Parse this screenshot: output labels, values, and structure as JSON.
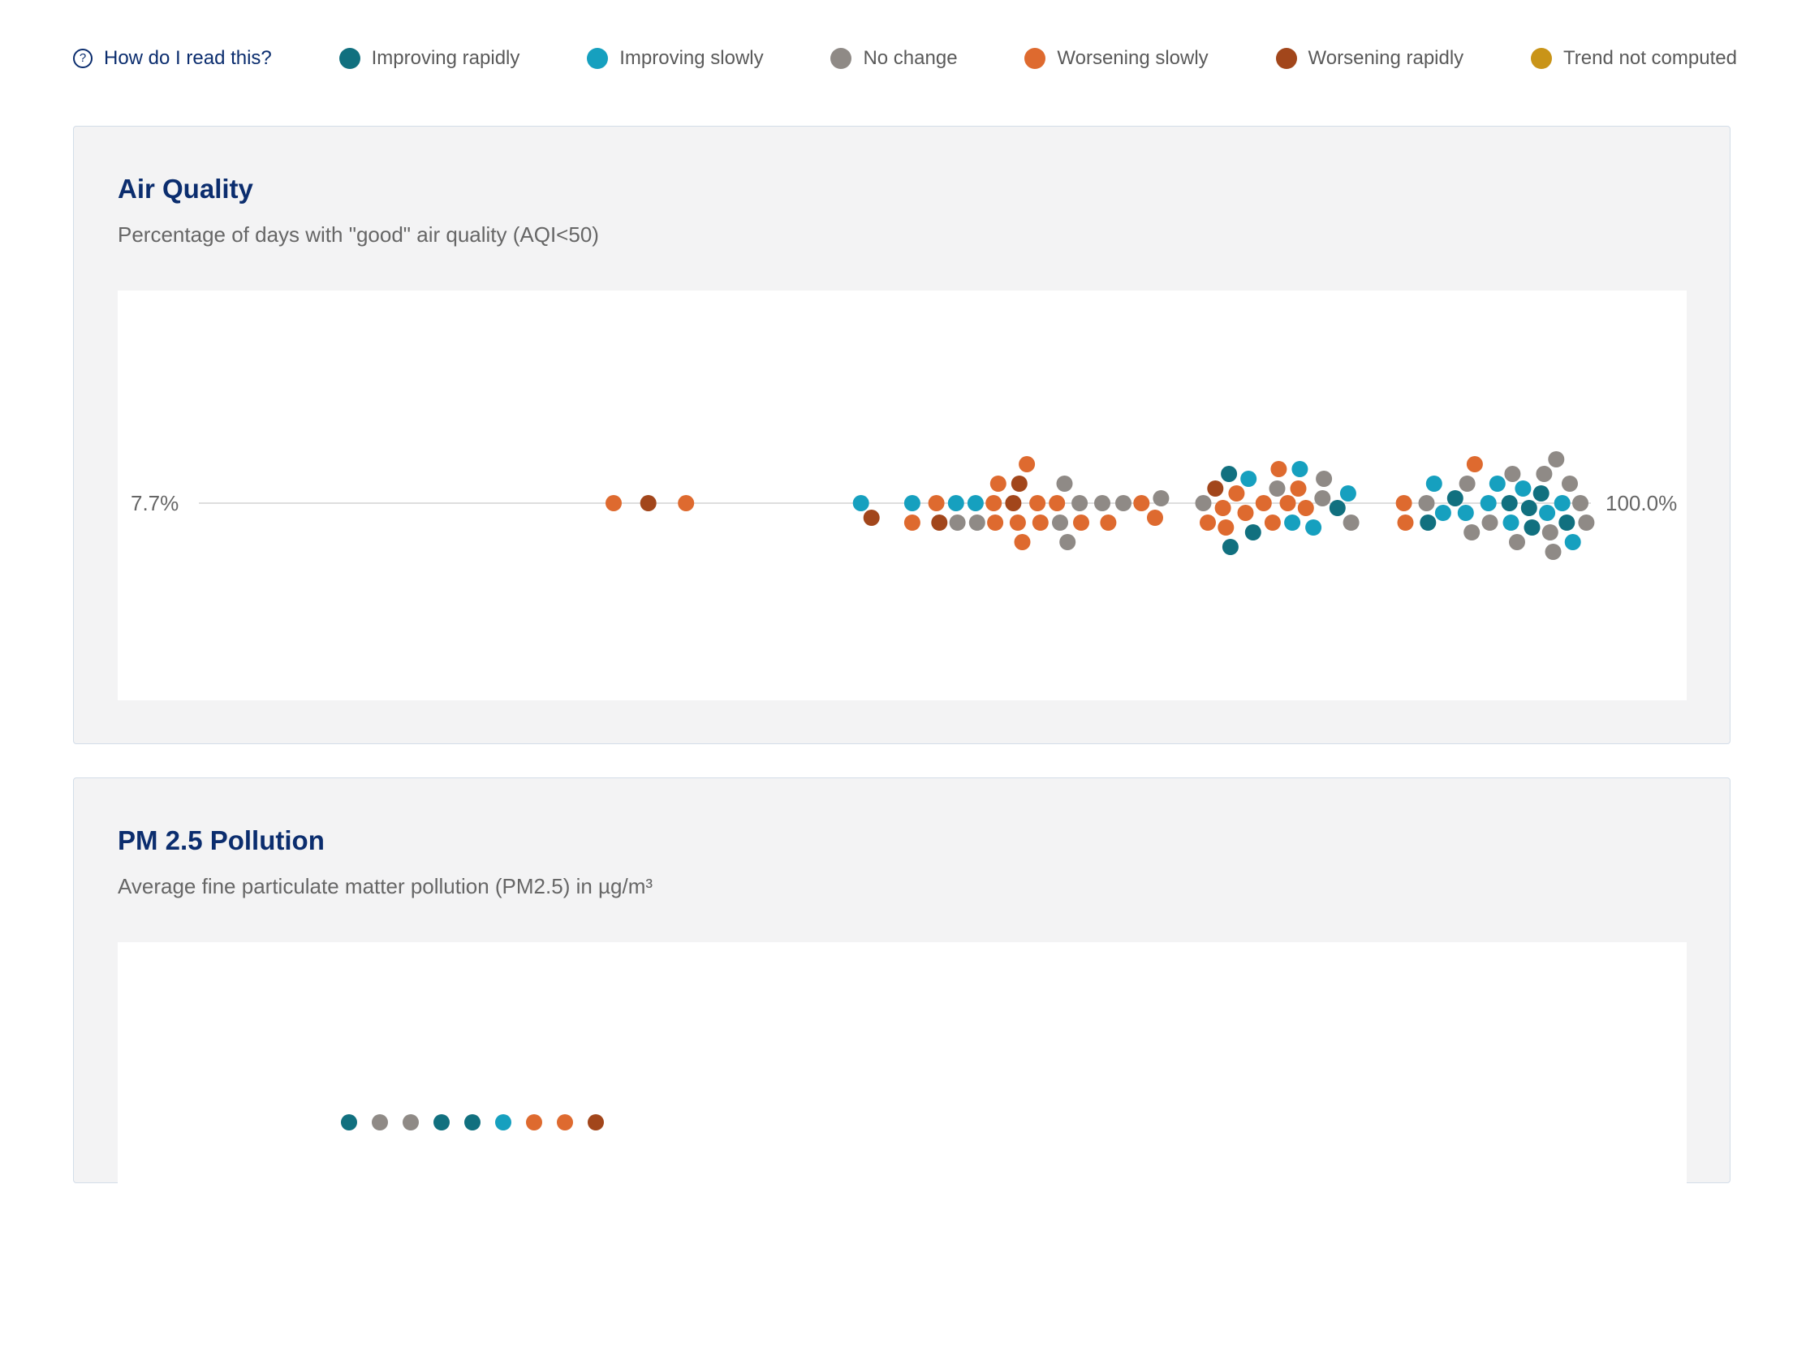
{
  "legend": {
    "help_label": "How do I read this?",
    "help_icon": "question-circle-icon",
    "items": [
      {
        "label": "Improving rapidly",
        "color": "#11707f"
      },
      {
        "label": "Improving slowly",
        "color": "#16a0bf"
      },
      {
        "label": "No change",
        "color": "#8f8a86"
      },
      {
        "label": "Worsening slowly",
        "color": "#de6a2f"
      },
      {
        "label": "Worsening rapidly",
        "color": "#a2461b"
      },
      {
        "label": "Trend not computed",
        "color": "#c99418"
      }
    ]
  },
  "panels": [
    {
      "title": "Air Quality",
      "subtitle": "Percentage of days with \"good\" air quality (AQI<50)"
    },
    {
      "title": "PM 2.5 Pollution",
      "subtitle": "Average fine particulate matter pollution (PM2.5) in µg/m³"
    }
  ],
  "chart_data": [
    {
      "type": "scatter",
      "title": "Air Quality",
      "subtitle": "Percentage of days with \"good\" air quality (AQI<50)",
      "layout": "beeswarm",
      "xlim": [
        7.7,
        100.0
      ],
      "min_label": "7.7%",
      "max_label": "100.0%",
      "points": [
        {
          "x": 35.2,
          "trend": "Worsening slowly"
        },
        {
          "x": 37.5,
          "trend": "Worsening rapidly"
        },
        {
          "x": 40.0,
          "trend": "Worsening slowly"
        },
        {
          "x": 51.6,
          "trend": "Improving slowly"
        },
        {
          "x": 52.3,
          "trend": "Worsening rapidly"
        },
        {
          "x": 55.0,
          "trend": "Improving slowly"
        },
        {
          "x": 55.0,
          "trend": "Worsening slowly"
        },
        {
          "x": 56.6,
          "trend": "Worsening slowly"
        },
        {
          "x": 56.8,
          "trend": "Worsening rapidly"
        },
        {
          "x": 57.9,
          "trend": "Improving slowly"
        },
        {
          "x": 58.0,
          "trend": "No change"
        },
        {
          "x": 59.2,
          "trend": "Improving slowly"
        },
        {
          "x": 59.3,
          "trend": "No change"
        },
        {
          "x": 60.4,
          "trend": "Worsening slowly"
        },
        {
          "x": 60.5,
          "trend": "Worsening slowly"
        },
        {
          "x": 60.7,
          "trend": "Worsening slowly"
        },
        {
          "x": 61.7,
          "trend": "Worsening rapidly"
        },
        {
          "x": 62.0,
          "trend": "Worsening slowly"
        },
        {
          "x": 62.1,
          "trend": "Worsening rapidly"
        },
        {
          "x": 62.3,
          "trend": "Worsening slowly"
        },
        {
          "x": 62.6,
          "trend": "Worsening slowly"
        },
        {
          "x": 63.3,
          "trend": "Worsening slowly"
        },
        {
          "x": 63.5,
          "trend": "Worsening slowly"
        },
        {
          "x": 64.6,
          "trend": "Worsening slowly"
        },
        {
          "x": 64.8,
          "trend": "No change"
        },
        {
          "x": 65.1,
          "trend": "No change"
        },
        {
          "x": 65.3,
          "trend": "No change"
        },
        {
          "x": 66.1,
          "trend": "No change"
        },
        {
          "x": 66.2,
          "trend": "Worsening slowly"
        },
        {
          "x": 67.6,
          "trend": "No change"
        },
        {
          "x": 68.0,
          "trend": "Worsening slowly"
        },
        {
          "x": 69.0,
          "trend": "No change"
        },
        {
          "x": 70.2,
          "trend": "Worsening slowly"
        },
        {
          "x": 71.1,
          "trend": "Worsening slowly"
        },
        {
          "x": 71.5,
          "trend": "No change"
        },
        {
          "x": 74.3,
          "trend": "No change"
        },
        {
          "x": 74.6,
          "trend": "Worsening slowly"
        },
        {
          "x": 75.1,
          "trend": "Worsening rapidly"
        },
        {
          "x": 75.6,
          "trend": "Worsening slowly"
        },
        {
          "x": 75.8,
          "trend": "Worsening slowly"
        },
        {
          "x": 76.0,
          "trend": "Improving rapidly"
        },
        {
          "x": 76.1,
          "trend": "Improving rapidly"
        },
        {
          "x": 76.5,
          "trend": "Worsening slowly"
        },
        {
          "x": 77.1,
          "trend": "Worsening slowly"
        },
        {
          "x": 77.3,
          "trend": "Improving slowly"
        },
        {
          "x": 77.6,
          "trend": "Improving rapidly"
        },
        {
          "x": 78.3,
          "trend": "Worsening slowly"
        },
        {
          "x": 78.9,
          "trend": "Worsening slowly"
        },
        {
          "x": 79.2,
          "trend": "No change"
        },
        {
          "x": 79.3,
          "trend": "Worsening slowly"
        },
        {
          "x": 79.9,
          "trend": "Worsening slowly"
        },
        {
          "x": 80.2,
          "trend": "Improving slowly"
        },
        {
          "x": 80.6,
          "trend": "Worsening slowly"
        },
        {
          "x": 80.7,
          "trend": "Improving slowly"
        },
        {
          "x": 81.1,
          "trend": "Worsening slowly"
        },
        {
          "x": 81.6,
          "trend": "Improving slowly"
        },
        {
          "x": 82.2,
          "trend": "No change"
        },
        {
          "x": 82.3,
          "trend": "No change"
        },
        {
          "x": 83.2,
          "trend": "Improving rapidly"
        },
        {
          "x": 83.9,
          "trend": "Improving slowly"
        },
        {
          "x": 84.1,
          "trend": "No change"
        },
        {
          "x": 87.6,
          "trend": "Worsening slowly"
        },
        {
          "x": 87.7,
          "trend": "Worsening slowly"
        },
        {
          "x": 89.1,
          "trend": "No change"
        },
        {
          "x": 89.2,
          "trend": "Improving rapidly"
        },
        {
          "x": 89.6,
          "trend": "Improving slowly"
        },
        {
          "x": 90.2,
          "trend": "Improving slowly"
        },
        {
          "x": 91.0,
          "trend": "Improving rapidly"
        },
        {
          "x": 91.7,
          "trend": "Improving slowly"
        },
        {
          "x": 91.8,
          "trend": "No change"
        },
        {
          "x": 92.1,
          "trend": "No change"
        },
        {
          "x": 92.3,
          "trend": "Worsening slowly"
        },
        {
          "x": 93.2,
          "trend": "Improving slowly"
        },
        {
          "x": 93.3,
          "trend": "No change"
        },
        {
          "x": 93.8,
          "trend": "Improving slowly"
        },
        {
          "x": 94.6,
          "trend": "Improving rapidly"
        },
        {
          "x": 94.7,
          "trend": "Improving slowly"
        },
        {
          "x": 94.8,
          "trend": "No change"
        },
        {
          "x": 95.1,
          "trend": "No change"
        },
        {
          "x": 95.5,
          "trend": "Improving slowly"
        },
        {
          "x": 95.9,
          "trend": "Improving rapidly"
        },
        {
          "x": 96.1,
          "trend": "Improving rapidly"
        },
        {
          "x": 96.7,
          "trend": "Improving rapidly"
        },
        {
          "x": 96.9,
          "trend": "No change"
        },
        {
          "x": 97.1,
          "trend": "Improving slowly"
        },
        {
          "x": 97.3,
          "trend": "No change"
        },
        {
          "x": 97.5,
          "trend": "No change"
        },
        {
          "x": 97.7,
          "trend": "No change"
        },
        {
          "x": 98.1,
          "trend": "Improving slowly"
        },
        {
          "x": 98.4,
          "trend": "Improving rapidly"
        },
        {
          "x": 98.6,
          "trend": "No change"
        },
        {
          "x": 98.8,
          "trend": "Improving slowly"
        },
        {
          "x": 99.3,
          "trend": "No change"
        },
        {
          "x": 99.7,
          "trend": "No change"
        }
      ]
    },
    {
      "type": "scatter",
      "title": "PM 2.5 Pollution",
      "subtitle": "Average fine particulate matter pollution (PM2.5) in µg/m³",
      "layout": "beeswarm",
      "partially_visible": true,
      "points": [
        {
          "trend": "Improving rapidly"
        },
        {
          "trend": "No change"
        },
        {
          "trend": "No change"
        },
        {
          "trend": "Improving rapidly"
        },
        {
          "trend": "Improving rapidly"
        },
        {
          "trend": "Improving slowly"
        },
        {
          "trend": "Worsening slowly"
        },
        {
          "trend": "Worsening slowly"
        },
        {
          "trend": "Worsening rapidly"
        }
      ]
    }
  ]
}
